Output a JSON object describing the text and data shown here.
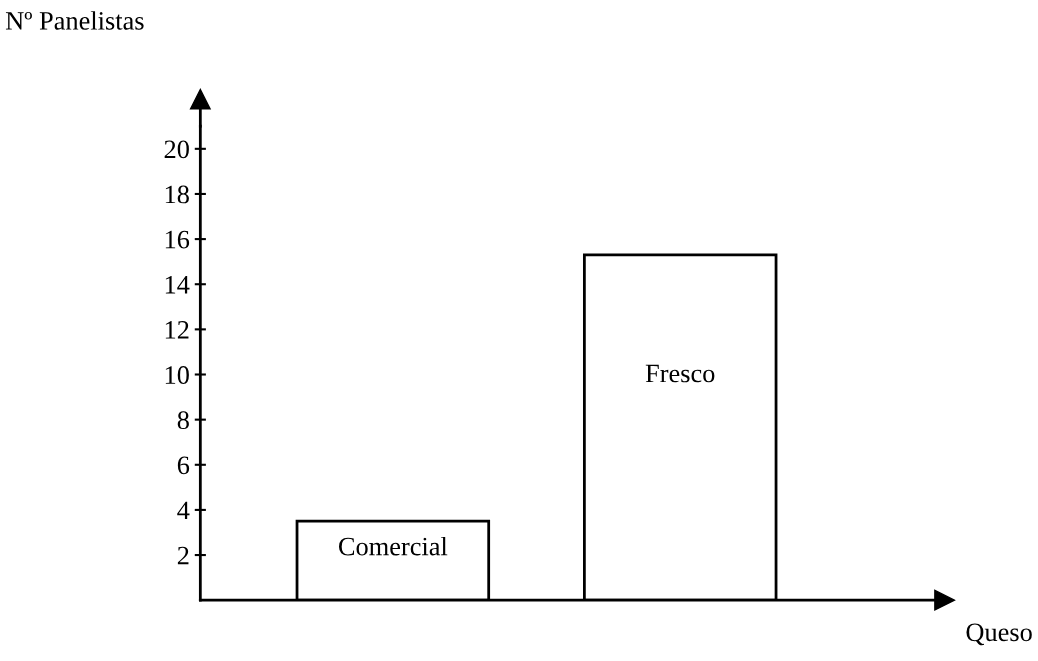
{
  "chart_data": {
    "type": "bar",
    "xlabel": "Queso",
    "ylabel": "Nº Panelistas",
    "categories": [
      "Comercial",
      "Fresco"
    ],
    "values": [
      3.5,
      15.3
    ],
    "color": "#ffffff",
    "ylim": [
      0,
      21
    ],
    "yticks": [
      2,
      4,
      6,
      8,
      10,
      12,
      14,
      16,
      18,
      20
    ],
    "grid": false
  }
}
